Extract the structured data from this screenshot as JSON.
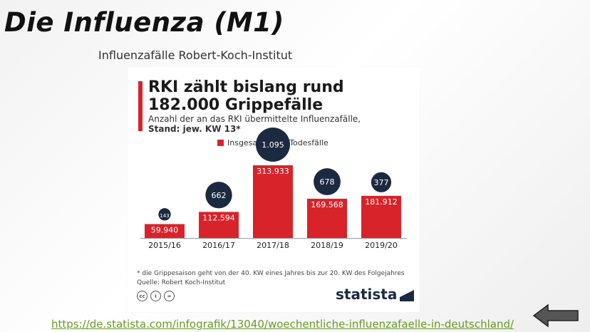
{
  "slide": {
    "title": "Die Influenza (M1)",
    "subtitle": "Influenzafälle Robert-Koch-Institut",
    "link": "https://de.statista.com/infografik/13040/woechentliche-influenzafaelle-in-deutschland/",
    "back_icon": "arrow-left-icon"
  },
  "card": {
    "headline_line1": "RKI zählt bislang rund",
    "headline_line2": "182.000 Grippefälle",
    "desc_line1": "Anzahl der an das RKI übermittelte Influenzafälle,",
    "desc_line2": "Stand: jew. KW 13*",
    "footnote_line1": "* die Grippesaison geht von der 40. KW eines Jahres bis zur 20. KW des Folgejahres",
    "footnote_line2": "Quelle: Robert Koch-Institut",
    "brand": "statista",
    "cc_icons": [
      "cc",
      "i",
      "="
    ]
  },
  "chart_data": {
    "type": "bar",
    "categories": [
      "2015/16",
      "2016/17",
      "2017/18",
      "2018/19",
      "2019/20"
    ],
    "series": [
      {
        "name": "Insgesamt",
        "values": [
          59940,
          112594,
          313933,
          169568,
          181912
        ],
        "labels": [
          "59.940",
          "112.594",
          "313.933",
          "169.568",
          "181.912"
        ]
      },
      {
        "name": "Todesfälle",
        "values": [
          143,
          662,
          1095,
          678,
          377
        ],
        "labels": [
          "143",
          "662",
          "1.095",
          "678",
          "377"
        ]
      }
    ],
    "title": "RKI zählt bislang rund 182.000 Grippefälle",
    "ylim": [
      0,
      313933
    ],
    "colors": {
      "bar": "#d8232a",
      "bubble": "#1b2a41"
    }
  }
}
